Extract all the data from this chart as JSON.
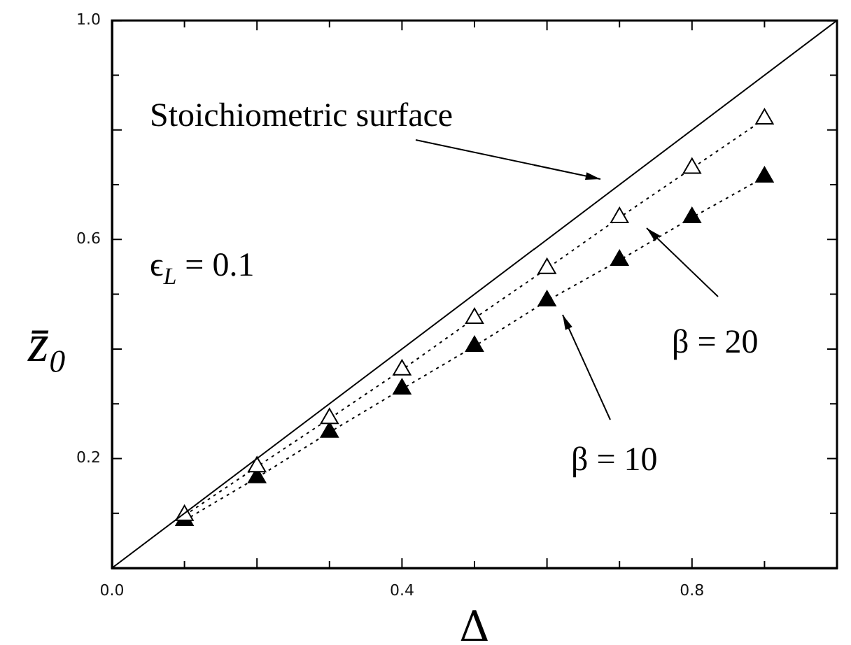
{
  "chart_data": {
    "type": "line",
    "xlabel": "Δ",
    "ylabel": "z̄₀",
    "xlim": [
      0,
      1
    ],
    "ylim": [
      0,
      1
    ],
    "xticks": [
      {
        "value": 0,
        "label": "0.0"
      },
      {
        "value": 0.1,
        "label": null
      },
      {
        "value": 0.2,
        "label": null
      },
      {
        "value": 0.3,
        "label": null
      },
      0.4,
      {
        "value": 0.5,
        "label": null
      },
      {
        "value": 0.6,
        "label": null
      },
      {
        "value": 0.7,
        "label": null
      },
      0.8,
      {
        "value": 0.9,
        "label": null
      },
      {
        "value": 1,
        "label": null
      }
    ],
    "yticks": [
      {
        "value": 0,
        "label": null
      },
      {
        "value": 0.1,
        "label": null
      },
      0.2,
      {
        "value": 0.3,
        "label": null
      },
      {
        "value": 0.4,
        "label": null
      },
      {
        "value": 0.5,
        "label": null
      },
      0.6,
      {
        "value": 0.7,
        "label": null
      },
      {
        "value": 0.8,
        "label": null
      },
      {
        "value": 0.9,
        "label": null
      },
      {
        "value": 1,
        "label": "1.0"
      }
    ],
    "grid": false,
    "legend": false,
    "series": [
      {
        "color": "#000000",
        "x": [
          0,
          1
        ],
        "values": [
          0,
          1
        ],
        "line_style": "solid",
        "marker": "none"
      },
      {
        "color": "#000000",
        "x": [
          0.1,
          0.2,
          0.3,
          0.4,
          0.5,
          0.6,
          0.7,
          0.8,
          0.9
        ],
        "values": [
          0.096,
          0.185,
          0.273,
          0.362,
          0.456,
          0.547,
          0.64,
          0.73,
          0.82
        ],
        "line_style": "dotted",
        "marker": "triangle"
      },
      {
        "color": "#000000",
        "x": [
          0.1,
          0.2,
          0.3,
          0.4,
          0.5,
          0.6,
          0.7,
          0.8,
          0.9
        ],
        "values": [
          0.087,
          0.165,
          0.248,
          0.327,
          0.405,
          0.488,
          0.562,
          0.64,
          0.714
        ],
        "line_style": "dotted",
        "marker": "triangle"
      }
    ],
    "annotations": [
      "Stoichiometric surface",
      "ϵ$_{L}$ = 0.1",
      "β = 20",
      "β = 10"
    ]
  }
}
